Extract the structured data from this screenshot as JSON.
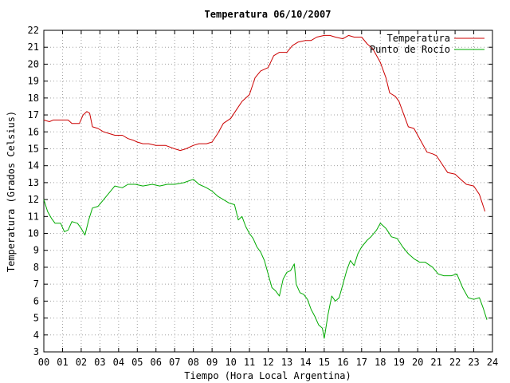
{
  "chart_data": {
    "type": "line",
    "title": "Temperatura 06/10/2007",
    "xlabel": "Tiempo (Hora Local Argentina)",
    "ylabel": "Temperatura (Grados Celsius)",
    "xlim": [
      0,
      24
    ],
    "ylim": [
      3,
      22
    ],
    "x_ticks": [
      "00",
      "01",
      "02",
      "03",
      "04",
      "05",
      "06",
      "07",
      "08",
      "09",
      "10",
      "11",
      "12",
      "13",
      "14",
      "15",
      "16",
      "17",
      "18",
      "19",
      "20",
      "21",
      "22",
      "23",
      "24"
    ],
    "y_ticks": [
      "3",
      "4",
      "5",
      "6",
      "7",
      "8",
      "9",
      "10",
      "11",
      "12",
      "13",
      "14",
      "15",
      "16",
      "17",
      "18",
      "19",
      "20",
      "21",
      "22"
    ],
    "grid": true,
    "legend_position": "top-right",
    "series": [
      {
        "name": "Temperatura",
        "color": "#cc0000",
        "points": [
          [
            0,
            16.7
          ],
          [
            0.3,
            16.6
          ],
          [
            0.5,
            16.7
          ],
          [
            0.8,
            16.7
          ],
          [
            1.0,
            16.7
          ],
          [
            1.3,
            16.7
          ],
          [
            1.5,
            16.5
          ],
          [
            1.9,
            16.5
          ],
          [
            2.1,
            17.0
          ],
          [
            2.3,
            17.2
          ],
          [
            2.45,
            17.1
          ],
          [
            2.6,
            16.3
          ],
          [
            2.9,
            16.2
          ],
          [
            3.2,
            16.0
          ],
          [
            3.5,
            15.9
          ],
          [
            3.8,
            15.8
          ],
          [
            4.2,
            15.8
          ],
          [
            4.5,
            15.6
          ],
          [
            4.8,
            15.5
          ],
          [
            5.0,
            15.4
          ],
          [
            5.3,
            15.3
          ],
          [
            5.6,
            15.3
          ],
          [
            6.0,
            15.2
          ],
          [
            6.5,
            15.2
          ],
          [
            7.0,
            15.0
          ],
          [
            7.3,
            14.9
          ],
          [
            7.6,
            15.0
          ],
          [
            8.0,
            15.2
          ],
          [
            8.3,
            15.3
          ],
          [
            8.7,
            15.3
          ],
          [
            9.0,
            15.4
          ],
          [
            9.3,
            15.9
          ],
          [
            9.6,
            16.5
          ],
          [
            10.0,
            16.8
          ],
          [
            10.3,
            17.3
          ],
          [
            10.6,
            17.8
          ],
          [
            11.0,
            18.2
          ],
          [
            11.3,
            19.2
          ],
          [
            11.6,
            19.6
          ],
          [
            12.0,
            19.8
          ],
          [
            12.3,
            20.5
          ],
          [
            12.6,
            20.7
          ],
          [
            13.0,
            20.7
          ],
          [
            13.3,
            21.1
          ],
          [
            13.6,
            21.3
          ],
          [
            14.0,
            21.4
          ],
          [
            14.3,
            21.4
          ],
          [
            14.6,
            21.6
          ],
          [
            15.0,
            21.7
          ],
          [
            15.3,
            21.7
          ],
          [
            15.6,
            21.6
          ],
          [
            16.0,
            21.5
          ],
          [
            16.3,
            21.7
          ],
          [
            16.6,
            21.6
          ],
          [
            17.0,
            21.6
          ],
          [
            17.3,
            21.2
          ],
          [
            17.6,
            20.9
          ],
          [
            18.0,
            20.1
          ],
          [
            18.3,
            19.2
          ],
          [
            18.5,
            18.3
          ],
          [
            18.8,
            18.1
          ],
          [
            19.0,
            17.8
          ],
          [
            19.3,
            16.9
          ],
          [
            19.5,
            16.3
          ],
          [
            19.8,
            16.2
          ],
          [
            20.0,
            15.8
          ],
          [
            20.3,
            15.2
          ],
          [
            20.5,
            14.8
          ],
          [
            20.8,
            14.7
          ],
          [
            21.0,
            14.6
          ],
          [
            21.3,
            14.1
          ],
          [
            21.6,
            13.6
          ],
          [
            22.0,
            13.5
          ],
          [
            22.3,
            13.2
          ],
          [
            22.6,
            12.9
          ],
          [
            23.0,
            12.8
          ],
          [
            23.3,
            12.3
          ],
          [
            23.6,
            11.3
          ]
        ]
      },
      {
        "name": "Punto de Rocío",
        "color": "#00aa00",
        "points": [
          [
            0,
            12.0
          ],
          [
            0.2,
            11.3
          ],
          [
            0.4,
            10.9
          ],
          [
            0.6,
            10.6
          ],
          [
            0.9,
            10.6
          ],
          [
            1.1,
            10.1
          ],
          [
            1.3,
            10.2
          ],
          [
            1.5,
            10.7
          ],
          [
            1.8,
            10.6
          ],
          [
            2.0,
            10.3
          ],
          [
            2.2,
            9.9
          ],
          [
            2.4,
            10.8
          ],
          [
            2.6,
            11.5
          ],
          [
            2.9,
            11.6
          ],
          [
            3.2,
            12.0
          ],
          [
            3.5,
            12.4
          ],
          [
            3.8,
            12.8
          ],
          [
            4.2,
            12.7
          ],
          [
            4.5,
            12.9
          ],
          [
            4.9,
            12.9
          ],
          [
            5.3,
            12.8
          ],
          [
            5.8,
            12.9
          ],
          [
            6.2,
            12.8
          ],
          [
            6.6,
            12.9
          ],
          [
            7.0,
            12.9
          ],
          [
            7.5,
            13.0
          ],
          [
            8.0,
            13.2
          ],
          [
            8.3,
            12.9
          ],
          [
            8.7,
            12.7
          ],
          [
            9.0,
            12.5
          ],
          [
            9.3,
            12.2
          ],
          [
            9.6,
            12.0
          ],
          [
            9.9,
            11.8
          ],
          [
            10.2,
            11.7
          ],
          [
            10.4,
            10.8
          ],
          [
            10.6,
            11.0
          ],
          [
            10.8,
            10.4
          ],
          [
            11.0,
            10.0
          ],
          [
            11.2,
            9.7
          ],
          [
            11.4,
            9.2
          ],
          [
            11.6,
            8.9
          ],
          [
            11.8,
            8.4
          ],
          [
            12.0,
            7.6
          ],
          [
            12.2,
            6.8
          ],
          [
            12.4,
            6.6
          ],
          [
            12.6,
            6.3
          ],
          [
            12.8,
            7.3
          ],
          [
            13.0,
            7.7
          ],
          [
            13.2,
            7.8
          ],
          [
            13.4,
            8.2
          ],
          [
            13.5,
            7.0
          ],
          [
            13.7,
            6.5
          ],
          [
            13.9,
            6.4
          ],
          [
            14.1,
            6.1
          ],
          [
            14.3,
            5.5
          ],
          [
            14.5,
            5.1
          ],
          [
            14.7,
            4.6
          ],
          [
            14.9,
            4.4
          ],
          [
            15.0,
            3.8
          ],
          [
            15.2,
            5.2
          ],
          [
            15.4,
            6.3
          ],
          [
            15.6,
            6.0
          ],
          [
            15.8,
            6.2
          ],
          [
            16.0,
            7.0
          ],
          [
            16.2,
            7.8
          ],
          [
            16.4,
            8.4
          ],
          [
            16.6,
            8.1
          ],
          [
            16.8,
            8.8
          ],
          [
            17.0,
            9.2
          ],
          [
            17.3,
            9.6
          ],
          [
            17.5,
            9.8
          ],
          [
            17.8,
            10.2
          ],
          [
            18.0,
            10.6
          ],
          [
            18.3,
            10.3
          ],
          [
            18.6,
            9.8
          ],
          [
            18.9,
            9.7
          ],
          [
            19.2,
            9.2
          ],
          [
            19.5,
            8.8
          ],
          [
            19.8,
            8.5
          ],
          [
            20.1,
            8.3
          ],
          [
            20.4,
            8.3
          ],
          [
            20.8,
            8.0
          ],
          [
            21.1,
            7.6
          ],
          [
            21.4,
            7.5
          ],
          [
            21.8,
            7.5
          ],
          [
            22.1,
            7.6
          ],
          [
            22.4,
            6.8
          ],
          [
            22.7,
            6.2
          ],
          [
            23.0,
            6.1
          ],
          [
            23.3,
            6.2
          ],
          [
            23.5,
            5.6
          ],
          [
            23.7,
            4.9
          ]
        ]
      }
    ]
  }
}
